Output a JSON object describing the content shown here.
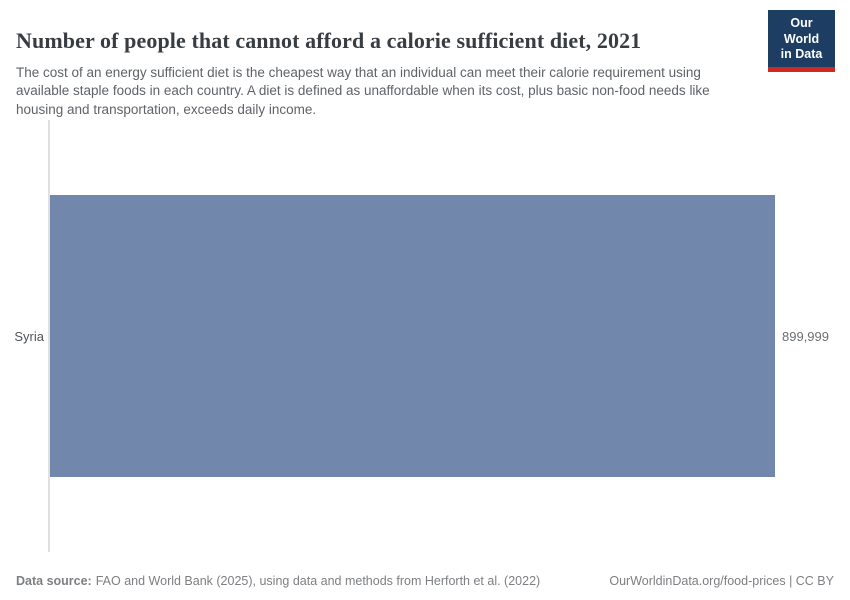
{
  "header": {
    "title": "Number of people that cannot afford a calorie sufficient diet, 2021",
    "subtitle": "The cost of an energy sufficient diet is the cheapest way that an individual can meet their calorie requirement using available staple foods in each country. A diet is defined as unaffordable when its cost, plus basic non-food needs like housing and transportation, exceeds daily income.",
    "logo_line1": "Our World",
    "logo_line2": "in Data"
  },
  "chart_data": {
    "type": "bar",
    "orientation": "horizontal",
    "title": "Number of people that cannot afford a calorie sufficient diet, 2021",
    "categories": [
      "Syria"
    ],
    "values": [
      899999
    ],
    "value_labels": [
      "899,999"
    ],
    "xlim": [
      0,
      900000
    ],
    "grid": false,
    "legend": false,
    "bar_color": "#7187ac"
  },
  "footer": {
    "source_label": "Data source:",
    "source_text": "FAO and World Bank (2025), using data and methods from Herforth et al. (2022)",
    "rights_text": "OurWorldinData.org/food-prices | CC BY"
  },
  "colors": {
    "bar": "#7187ac",
    "axis_line": "#e0e0e0",
    "logo_background": "#1d3d63",
    "logo_stripe": "#cf2a22"
  }
}
